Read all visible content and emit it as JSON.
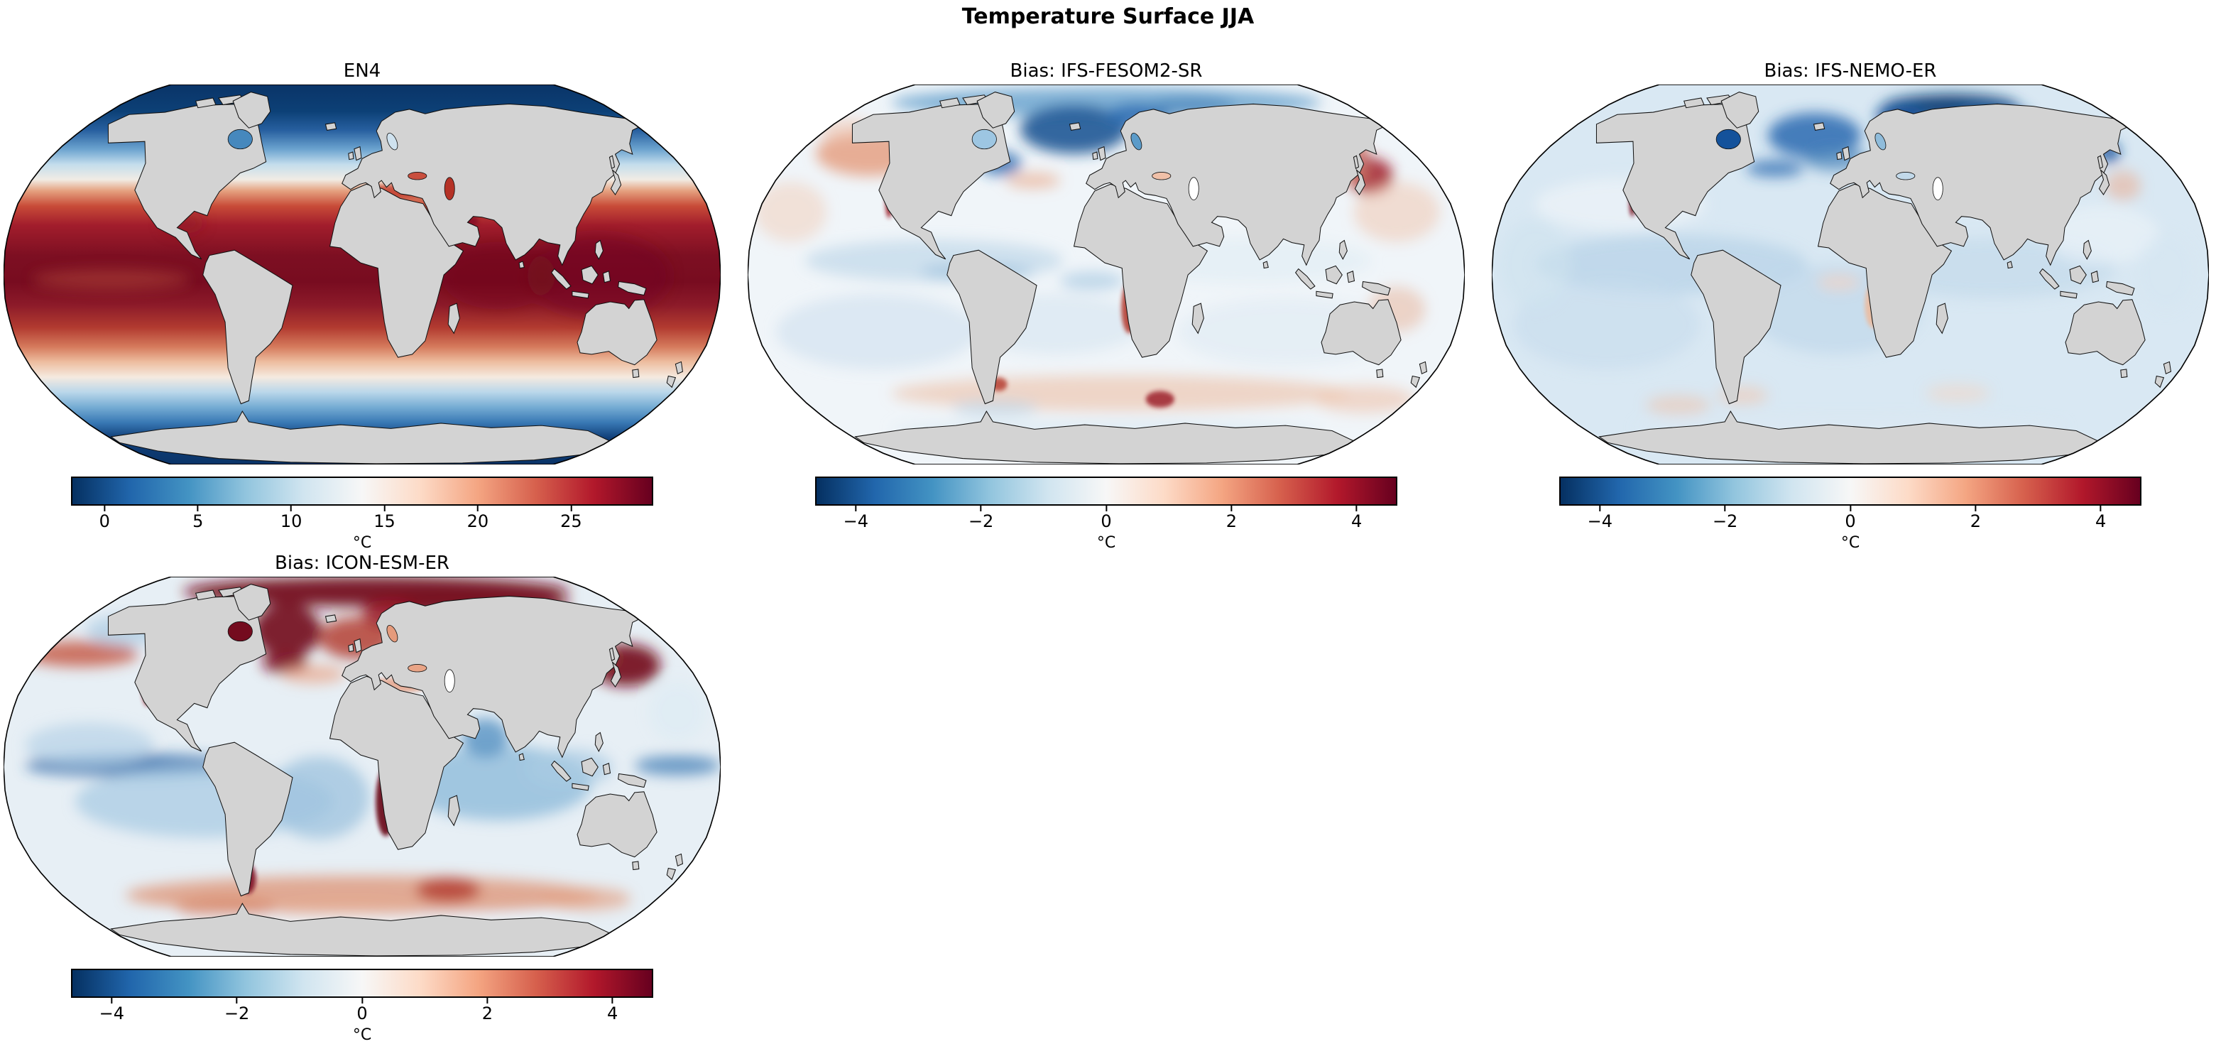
{
  "figure": {
    "title": "Temperature Surface JJA",
    "background_color": "#ffffff",
    "land_color": "#d3d3d3"
  },
  "chart_data": [
    {
      "type": "heatmap",
      "id": "en4",
      "title": "EN4",
      "projection": "Robinson",
      "variable": "sea surface temperature",
      "season": "JJA",
      "colormap": "RdBu_r",
      "colorbar": {
        "label": "°C",
        "ticks": [
          0,
          5,
          10,
          15,
          20,
          25
        ],
        "vmin": -1.8,
        "vmax": 29.4
      },
      "features": [
        "dark blue polar oceans below 0°C in Arctic and around Antarctica",
        "dark red tropical band near 28°C across Pacific, Atlantic and Indian Oceans",
        "white transition bands near 48°N and 45°S",
        "red Mediterranean, Black and Caspian Seas",
        "gray land masses including Greenland and Antarctica"
      ]
    },
    {
      "type": "heatmap",
      "id": "ifs-fesom2-sr",
      "title": "Bias: IFS-FESOM2-SR",
      "projection": "Robinson",
      "variable": "temperature bias vs EN4",
      "season": "JJA",
      "colormap": "RdBu_r",
      "colorbar": {
        "label": "°C",
        "ticks": [
          -4,
          -2,
          0,
          2,
          4
        ],
        "vmin": -4.65,
        "vmax": 4.65
      },
      "features": [
        "strong cold bias (dark blue) in subpolar North Atlantic, Nordic Seas and Arctic rim",
        "warm bias (red) in NE Pacific, off Baja California and NW Pacific near Japan",
        "weak cool bias over tropical oceans",
        "warm bias along Benguela coast and patchy warm band in Southern Ocean near 50°S"
      ]
    },
    {
      "type": "heatmap",
      "id": "ifs-nemo-er",
      "title": "Bias: IFS-NEMO-ER",
      "projection": "Robinson",
      "variable": "temperature bias vs EN4",
      "season": "JJA",
      "colormap": "RdBu_r",
      "colorbar": {
        "label": "°C",
        "ticks": [
          -4,
          -2,
          0,
          2,
          4
        ],
        "vmin": -4.65,
        "vmax": 4.65
      },
      "features": [
        "widespread weak cold bias (light blue) over most oceans",
        "strong cold bias in Barents/Kara Seas, subpolar North Atlantic, Hudson Bay and Sea of Okhotsk",
        "narrow warm bias strips off Baja California and along Benguela coast",
        "near-neutral Southern Ocean with faint warm patches"
      ]
    },
    {
      "type": "heatmap",
      "id": "icon-esm-er",
      "title": "Bias: ICON-ESM-ER",
      "projection": "Robinson",
      "variable": "temperature bias vs EN4",
      "season": "JJA",
      "colormap": "RdBu_r",
      "colorbar": {
        "label": "°C",
        "ticks": [
          -4,
          -2,
          0,
          2,
          4
        ],
        "vmin": -4.65,
        "vmax": 4.65
      },
      "features": [
        "strong warm bias (dark red) across Arctic Ocean, Hudson Bay, Labrador Sea and NW Pacific",
        "cold bias (blue) along equatorial Pacific cold tongue and tropical Indian Ocean",
        "intense warm bias along Benguela/Angola coast and off Argentina",
        "broad warm bias band over Southern Ocean 45–60°S"
      ]
    }
  ],
  "layout": {
    "grid": "2 rows x 3 columns",
    "panel_order": [
      "EN4",
      "Bias: IFS-FESOM2-SR",
      "Bias: IFS-NEMO-ER",
      "Bias: ICON-ESM-ER"
    ]
  }
}
